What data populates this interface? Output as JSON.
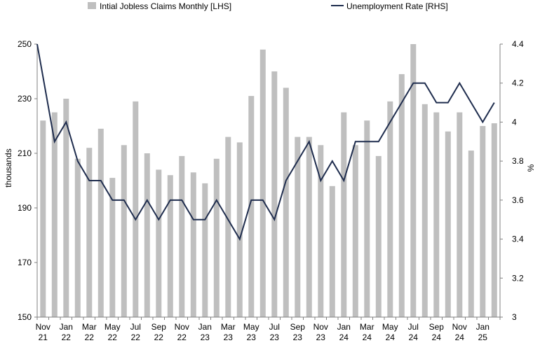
{
  "chart_data": {
    "type": "bar",
    "legend": {
      "placement": "top",
      "items": [
        {
          "label": "Intial Jobless Claims Monthly [LHS]",
          "symbol": "bar"
        },
        {
          "label": "Unemployment Rate [RHS]",
          "symbol": "line"
        }
      ]
    },
    "ylabel": "thousands",
    "y2label": "%",
    "ylim": [
      150,
      250
    ],
    "yticks": [
      "150",
      "170",
      "190",
      "210",
      "230",
      "250"
    ],
    "y2lim": [
      3.0,
      4.4
    ],
    "y2ticks": [
      "3",
      "3.2",
      "3.4",
      "3.6",
      "3.8",
      "4",
      "4.2",
      "4.4"
    ],
    "grid": false,
    "x": [
      "Nov 21",
      "Dec 21",
      "Jan 22",
      "Feb 22",
      "Mar 22",
      "Apr 22",
      "May 22",
      "Jun 22",
      "Jul 22",
      "Aug 22",
      "Sep 22",
      "Oct 22",
      "Nov 22",
      "Dec 22",
      "Jan 23",
      "Feb 23",
      "Mar 23",
      "Apr 23",
      "May 23",
      "Jun 23",
      "Jul 23",
      "Aug 23",
      "Sep 23",
      "Oct 23",
      "Nov 23",
      "Dec 23",
      "Jan 24",
      "Feb 24",
      "Mar 24",
      "Apr 24",
      "May 24",
      "Jun 24",
      "Jul 24",
      "Aug 24",
      "Sep 24",
      "Oct 24",
      "Nov 24",
      "Dec 24",
      "Jan 25",
      "Feb 25"
    ],
    "xticks": [
      {
        "index": 0,
        "top": "Nov",
        "bottom": "21"
      },
      {
        "index": 2,
        "top": "Jan",
        "bottom": "22"
      },
      {
        "index": 4,
        "top": "Mar",
        "bottom": "22"
      },
      {
        "index": 6,
        "top": "May",
        "bottom": "22"
      },
      {
        "index": 8,
        "top": "Jul",
        "bottom": "22"
      },
      {
        "index": 10,
        "top": "Sep",
        "bottom": "22"
      },
      {
        "index": 12,
        "top": "Nov",
        "bottom": "22"
      },
      {
        "index": 14,
        "top": "Jan",
        "bottom": "23"
      },
      {
        "index": 16,
        "top": "Mar",
        "bottom": "23"
      },
      {
        "index": 18,
        "top": "May",
        "bottom": "23"
      },
      {
        "index": 20,
        "top": "Jul",
        "bottom": "23"
      },
      {
        "index": 22,
        "top": "Sep",
        "bottom": "23"
      },
      {
        "index": 24,
        "top": "Nov",
        "bottom": "23"
      },
      {
        "index": 26,
        "top": "Jan",
        "bottom": "24"
      },
      {
        "index": 28,
        "top": "Mar",
        "bottom": "24"
      },
      {
        "index": 30,
        "top": "May",
        "bottom": "24"
      },
      {
        "index": 32,
        "top": "Jul",
        "bottom": "24"
      },
      {
        "index": 34,
        "top": "Sep",
        "bottom": "24"
      },
      {
        "index": 36,
        "top": "Nov",
        "bottom": "24"
      },
      {
        "index": 38,
        "top": "Jan",
        "bottom": "25"
      }
    ],
    "series": [
      {
        "name": "Intial Jobless Claims Monthly [LHS]",
        "type": "bar",
        "axis": "left",
        "color": "#bfbfbf",
        "values": [
          222,
          225,
          230,
          208,
          212,
          219,
          201,
          213,
          229,
          210,
          204,
          202,
          209,
          203,
          199,
          208,
          216,
          214,
          231,
          248,
          240,
          234,
          216,
          216,
          213,
          198,
          225,
          213,
          222,
          209,
          229,
          239,
          250,
          228,
          225,
          218,
          225,
          211,
          220,
          221
        ]
      },
      {
        "name": "Unemployment Rate [RHS]",
        "type": "line",
        "axis": "right",
        "color": "#1f2d4e",
        "values": [
          4.3,
          3.9,
          4.0,
          3.8,
          3.7,
          3.7,
          3.6,
          3.6,
          3.5,
          3.6,
          3.5,
          3.6,
          3.6,
          3.5,
          3.5,
          3.6,
          3.5,
          3.4,
          3.6,
          3.6,
          3.5,
          3.7,
          3.8,
          3.9,
          3.7,
          3.8,
          3.7,
          3.9,
          3.9,
          3.9,
          4.0,
          4.1,
          4.2,
          4.2,
          4.1,
          4.1,
          4.2,
          4.1,
          4.0,
          4.1
        ],
        "first_value_note": "line starts at top-left corner of plot"
      }
    ]
  }
}
